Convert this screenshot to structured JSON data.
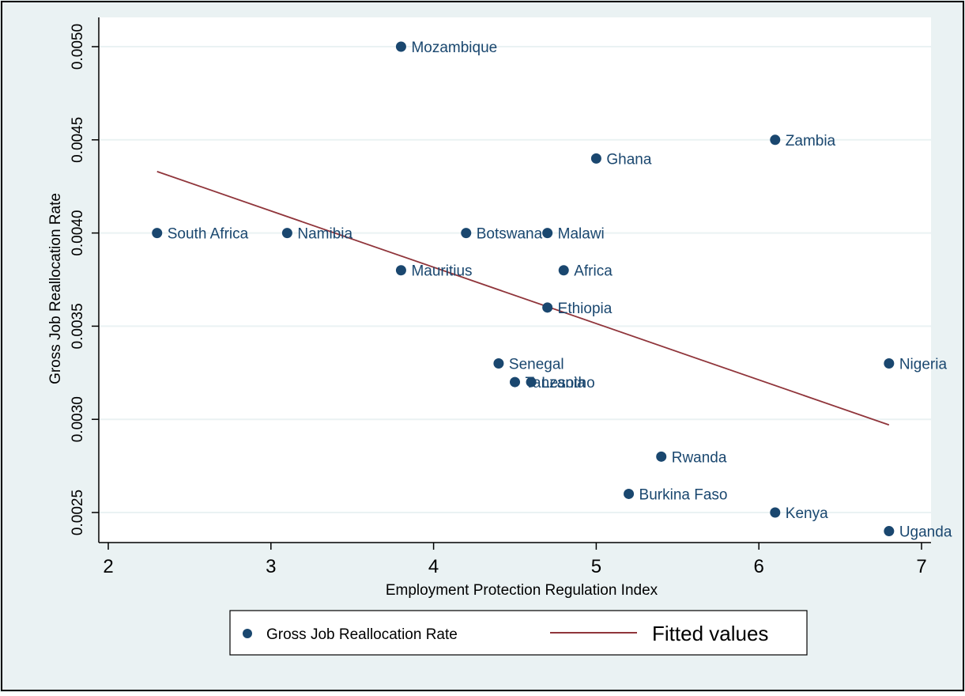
{
  "chart_data": {
    "type": "scatter",
    "xlabel": "Employment Protection Regulation Index",
    "ylabel": "Gross Job Reallocation Rate",
    "xlim": [
      2,
      7
    ],
    "ylim": [
      0.00243,
      0.0051
    ],
    "x_ticks": [
      2,
      3,
      4,
      5,
      6,
      7
    ],
    "x_tick_labels": [
      "2",
      "3",
      "4",
      "5",
      "6",
      "7"
    ],
    "y_ticks": [
      0.0025,
      0.003,
      0.0035,
      0.004,
      0.0045,
      0.005
    ],
    "y_tick_labels": [
      "0.0025",
      "0.0030",
      "0.0035",
      "0.0040",
      "0.0045",
      "0.0050"
    ],
    "grid": "horizontal",
    "legend_position": "bottom",
    "series": [
      {
        "name": "Gross Job Reallocation Rate",
        "type": "scatter",
        "color": "#1a476f",
        "points": [
          {
            "label": "Mozambique",
            "x": 3.8,
            "y": 0.005
          },
          {
            "label": "Zambia",
            "x": 6.1,
            "y": 0.0045
          },
          {
            "label": "Ghana",
            "x": 5.0,
            "y": 0.0044
          },
          {
            "label": "South Africa",
            "x": 2.3,
            "y": 0.004
          },
          {
            "label": "Namibia",
            "x": 3.1,
            "y": 0.004
          },
          {
            "label": "Botswana",
            "x": 4.2,
            "y": 0.004
          },
          {
            "label": "Malawi",
            "x": 4.7,
            "y": 0.004
          },
          {
            "label": "Mauritius",
            "x": 3.8,
            "y": 0.0038
          },
          {
            "label": "Africa",
            "x": 4.8,
            "y": 0.0038
          },
          {
            "label": "Ethiopia",
            "x": 4.7,
            "y": 0.0036
          },
          {
            "label": "Senegal",
            "x": 4.4,
            "y": 0.0033
          },
          {
            "label": "Tanzania",
            "x": 4.5,
            "y": 0.0032
          },
          {
            "label": "Lesotho",
            "x": 4.6,
            "y": 0.0032
          },
          {
            "label": "Nigeria",
            "x": 6.8,
            "y": 0.0033
          },
          {
            "label": "Rwanda",
            "x": 5.4,
            "y": 0.0028
          },
          {
            "label": "Burkina Faso",
            "x": 5.2,
            "y": 0.0026
          },
          {
            "label": "Kenya",
            "x": 6.1,
            "y": 0.0025
          },
          {
            "label": "Uganda",
            "x": 6.8,
            "y": 0.0024
          }
        ]
      },
      {
        "name": "Fitted values",
        "type": "line",
        "color": "#90353b",
        "x": [
          2.3,
          6.8
        ],
        "y": [
          0.00433,
          0.00297
        ]
      }
    ],
    "colors": {
      "plot_background": "#ffffff",
      "outer_background": "#eaf2f3",
      "grid": "#eaf2f3",
      "text": "#000000",
      "point_label": "#1a476f"
    }
  }
}
